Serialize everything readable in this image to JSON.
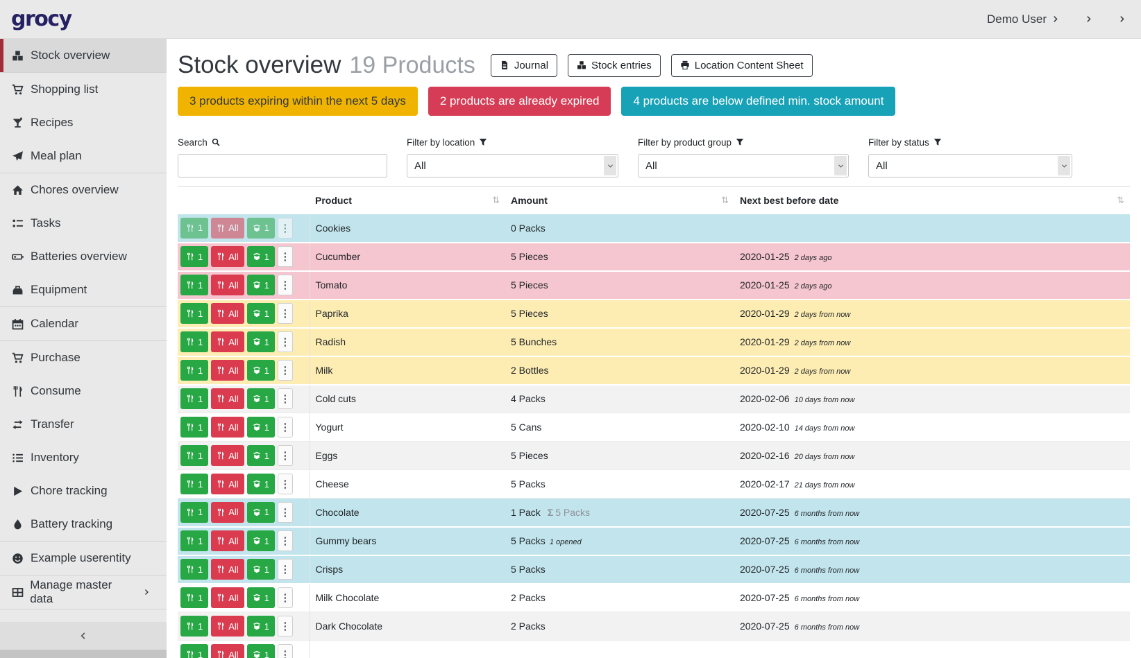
{
  "colors": {
    "topbar_bg": "#e9e9e9",
    "sidebar_active_border": "#a22b3a",
    "logo_color": "#252163",
    "badge_warning": "#f0b400",
    "badge_danger": "#d63c55",
    "badge_info": "#17a2b8",
    "row_info": "#c2e5ed",
    "row_danger": "#f5c6cf",
    "row_warning": "#fdedb3",
    "button_green": "#28a745",
    "button_red": "#da3b4e"
  },
  "topbar": {
    "logo_text": "grocy",
    "user_label": "Demo User",
    "user_icon": "person",
    "settings_icon": "sliders",
    "admin_icon": "wrench"
  },
  "sidebar": {
    "items": [
      {
        "label": "Stock overview",
        "icon": "boxes",
        "active": true,
        "divider_after": true
      },
      {
        "label": "Shopping list",
        "icon": "cart"
      },
      {
        "label": "Recipes",
        "icon": "cocktail"
      },
      {
        "label": "Meal plan",
        "icon": "paper-plane",
        "divider_after": true
      },
      {
        "label": "Chores overview",
        "icon": "home"
      },
      {
        "label": "Tasks",
        "icon": "tasks"
      },
      {
        "label": "Batteries overview",
        "icon": "battery"
      },
      {
        "label": "Equipment",
        "icon": "toolbox",
        "divider_after": true
      },
      {
        "label": "Calendar",
        "icon": "calendar",
        "divider_after": true
      },
      {
        "label": "Purchase",
        "icon": "cart"
      },
      {
        "label": "Consume",
        "icon": "utensils"
      },
      {
        "label": "Transfer",
        "icon": "exchange"
      },
      {
        "label": "Inventory",
        "icon": "list"
      },
      {
        "label": "Chore tracking",
        "icon": "play"
      },
      {
        "label": "Battery tracking",
        "icon": "droplet",
        "divider_after": true
      },
      {
        "label": "Example userentity",
        "icon": "smiley",
        "divider_after": true
      },
      {
        "label": "Manage master data",
        "icon": "table-grid",
        "chevron": true,
        "divider_after": true
      }
    ]
  },
  "page": {
    "title": "Stock overview",
    "subtitle": "19 Products",
    "actions": [
      {
        "label": "Journal",
        "icon": "journal"
      },
      {
        "label": "Stock entries",
        "icon": "boxes"
      },
      {
        "label": "Location Content Sheet",
        "icon": "print"
      }
    ]
  },
  "alerts": [
    {
      "text": "3 products expiring within the next 5 days",
      "type": "warning"
    },
    {
      "text": "2 products are already expired",
      "type": "danger"
    },
    {
      "text": "4 products are below defined min. stock amount",
      "type": "info"
    }
  ],
  "filters": {
    "search": {
      "label": "Search",
      "value": ""
    },
    "location": {
      "label": "Filter by location",
      "value": "All"
    },
    "product_group": {
      "label": "Filter by product group",
      "value": "All"
    },
    "status": {
      "label": "Filter by status",
      "value": "All"
    }
  },
  "table": {
    "headers": {
      "product": "Product",
      "amount": "Amount",
      "best_before": "Next best before date"
    },
    "row_buttons": {
      "consume_one": "1",
      "consume_all": "All",
      "open_one": "1"
    },
    "sum_symbol": "Σ",
    "rows": [
      {
        "product": "Cookies",
        "amount": "0 Packs",
        "date": "",
        "relative": "",
        "status": "info",
        "disabled": true
      },
      {
        "product": "Cucumber",
        "amount": "5 Pieces",
        "date": "2020-01-25",
        "relative": "2 days ago",
        "status": "danger"
      },
      {
        "product": "Tomato",
        "amount": "5 Pieces",
        "date": "2020-01-25",
        "relative": "2 days ago",
        "status": "danger"
      },
      {
        "product": "Paprika",
        "amount": "5 Pieces",
        "date": "2020-01-29",
        "relative": "2 days from now",
        "status": "warning"
      },
      {
        "product": "Radish",
        "amount": "5 Bunches",
        "date": "2020-01-29",
        "relative": "2 days from now",
        "status": "warning"
      },
      {
        "product": "Milk",
        "amount": "2 Bottles",
        "date": "2020-01-29",
        "relative": "2 days from now",
        "status": "warning"
      },
      {
        "product": "Cold cuts",
        "amount": "4 Packs",
        "date": "2020-02-06",
        "relative": "10 days from now",
        "status": "",
        "stripe": true
      },
      {
        "product": "Yogurt",
        "amount": "5 Cans",
        "date": "2020-02-10",
        "relative": "14 days from now",
        "status": ""
      },
      {
        "product": "Eggs",
        "amount": "5 Pieces",
        "date": "2020-02-16",
        "relative": "20 days from now",
        "status": "",
        "stripe": true
      },
      {
        "product": "Cheese",
        "amount": "5 Packs",
        "date": "2020-02-17",
        "relative": "21 days from now",
        "status": ""
      },
      {
        "product": "Chocolate",
        "amount": "1 Pack",
        "amount_sum": "5 Packs",
        "date": "2020-07-25",
        "relative": "6 months from now",
        "status": "info"
      },
      {
        "product": "Gummy bears",
        "amount": "5 Packs",
        "amount_note": "1 opened",
        "date": "2020-07-25",
        "relative": "6 months from now",
        "status": "info"
      },
      {
        "product": "Crisps",
        "amount": "5 Packs",
        "date": "2020-07-25",
        "relative": "6 months from now",
        "status": "info"
      },
      {
        "product": "Milk Chocolate",
        "amount": "2 Packs",
        "date": "2020-07-25",
        "relative": "6 months from now",
        "status": ""
      },
      {
        "product": "Dark Chocolate",
        "amount": "2 Packs",
        "date": "2020-07-25",
        "relative": "6 months from now",
        "status": "",
        "stripe": true
      },
      {
        "product": "",
        "amount": "",
        "date": "",
        "relative": "",
        "status": "",
        "partial": true
      }
    ]
  }
}
